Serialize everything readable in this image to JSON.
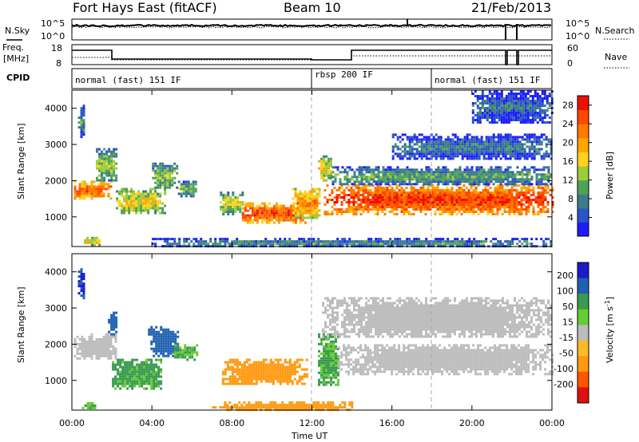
{
  "header": {
    "station": "Fort Hays East (fitACF)",
    "beam": "Beam 10",
    "date": "21/Feb/2013"
  },
  "noise_panel": {
    "left_label": "N.Sky",
    "right_label": "N.Search",
    "left_ticks": [
      "10^5",
      "10^0"
    ],
    "right_ticks": [
      "10^5",
      "10^0"
    ]
  },
  "freq_panel": {
    "left_label_1": "Freq.",
    "left_label_2": "[MHz]",
    "right_label": "Nave",
    "left_ticks": [
      "18",
      "8"
    ],
    "right_ticks": [
      "60",
      "0"
    ]
  },
  "cpid": {
    "label": "CPID",
    "modes": [
      {
        "name": "normal (fast) 151 IF",
        "start_hr": 0
      },
      {
        "name": "rbsp 200 IF",
        "start_hr": 12
      },
      {
        "name": "normal (fast) 151 IF",
        "start_hr": 18
      }
    ]
  },
  "x_axis": {
    "label": "Time UT",
    "ticks": [
      "00:00",
      "04:00",
      "08:00",
      "12:00",
      "16:00",
      "20:00",
      "00:00"
    ]
  },
  "chart_data": [
    {
      "type": "heatmap",
      "title": "",
      "xlabel": "Time UT",
      "ylabel": "Slant Range [km]",
      "xlim": [
        0,
        24
      ],
      "ylim": [
        180,
        4500
      ],
      "y_ticks": [
        "1000",
        "2000",
        "3000",
        "4000"
      ],
      "colorbar": {
        "label": "Power [dB]",
        "ticks": [
          "4",
          "8",
          "12",
          "16",
          "20",
          "24",
          "28"
        ],
        "range": [
          0,
          30
        ],
        "colors": [
          "#1c1cff",
          "#2b54c8",
          "#3d7b8a",
          "#4fa357",
          "#9ccc3c",
          "#ffd21f",
          "#ffa500",
          "#ff7a00",
          "#ff4800",
          "#ee1000"
        ]
      },
      "regions": [
        {
          "t0": 0.1,
          "t1": 1.9,
          "r0": 1500,
          "r1": 2000,
          "level": 0.7
        },
        {
          "t0": 0.3,
          "t1": 0.6,
          "r0": 3200,
          "r1": 4100,
          "level": 0.2
        },
        {
          "t0": 1.2,
          "t1": 2.2,
          "r0": 2000,
          "r1": 2900,
          "level": 0.35
        },
        {
          "t0": 2.2,
          "t1": 4.6,
          "r0": 1100,
          "r1": 1800,
          "level": 0.45
        },
        {
          "t0": 4.0,
          "t1": 5.2,
          "r0": 1800,
          "r1": 2500,
          "level": 0.35
        },
        {
          "t0": 5.3,
          "t1": 6.2,
          "r0": 1600,
          "r1": 2000,
          "level": 0.3
        },
        {
          "t0": 0.6,
          "t1": 1.4,
          "r0": 250,
          "r1": 450,
          "level": 0.5
        },
        {
          "t0": 7.4,
          "t1": 8.5,
          "r0": 1100,
          "r1": 1700,
          "level": 0.4
        },
        {
          "t0": 8.5,
          "t1": 11.7,
          "r0": 850,
          "r1": 1400,
          "level": 0.75
        },
        {
          "t0": 11.0,
          "t1": 12.4,
          "r0": 1000,
          "r1": 1800,
          "level": 0.6
        },
        {
          "t0": 12.3,
          "t1": 13.0,
          "r0": 2000,
          "r1": 2700,
          "level": 0.45
        },
        {
          "t0": 12.6,
          "t1": 24,
          "r0": 1100,
          "r1": 1900,
          "level": 0.78
        },
        {
          "t0": 13.0,
          "t1": 24,
          "r0": 1900,
          "r1": 2400,
          "level": 0.25
        },
        {
          "t0": 16.0,
          "t1": 24,
          "r0": 2600,
          "r1": 3300,
          "level": 0.15
        },
        {
          "t0": 20.0,
          "t1": 24,
          "r0": 3600,
          "r1": 4500,
          "level": 0.12
        },
        {
          "t0": 4.0,
          "t1": 24,
          "r0": 180,
          "r1": 420,
          "level": 0.2
        }
      ]
    },
    {
      "type": "heatmap",
      "title": "",
      "xlabel": "Time UT",
      "ylabel": "Slant Range [km]",
      "xlim": [
        0,
        24
      ],
      "ylim": [
        180,
        4500
      ],
      "y_ticks": [
        "1000",
        "2000",
        "3000",
        "4000"
      ],
      "colorbar": {
        "label": "Velocity [m s",
        "label_sup": "-1",
        "label_end": "]",
        "ticks": [
          "200",
          "100",
          "50",
          "15",
          "-15",
          "-50",
          "-100",
          "-200"
        ],
        "colors": [
          "#1a1acc",
          "#2060b0",
          "#3a9a50",
          "#66cc33",
          "#bcbcbc",
          "#ffbb22",
          "#ff9911",
          "#ff5500",
          "#dd1111"
        ]
      },
      "regions": [
        {
          "t0": 0.1,
          "t1": 2.2,
          "r0": 1600,
          "r1": 2300,
          "v": 0
        },
        {
          "t0": 0.3,
          "t1": 0.6,
          "r0": 3300,
          "r1": 4100,
          "v": 150
        },
        {
          "t0": 1.8,
          "t1": 2.2,
          "r0": 2300,
          "r1": 2900,
          "v": 120
        },
        {
          "t0": 2.0,
          "t1": 4.5,
          "r0": 800,
          "r1": 1600,
          "v": 40
        },
        {
          "t0": 3.8,
          "t1": 5.3,
          "r0": 1700,
          "r1": 2500,
          "v": 110
        },
        {
          "t0": 5.0,
          "t1": 6.2,
          "r0": 1600,
          "r1": 2000,
          "v": 30
        },
        {
          "t0": 0.5,
          "t1": 1.2,
          "r0": 250,
          "r1": 400,
          "v": 30
        },
        {
          "t0": 7.5,
          "t1": 11.7,
          "r0": 900,
          "r1": 1600,
          "v": -60
        },
        {
          "t0": 12.3,
          "t1": 13.3,
          "r0": 900,
          "r1": 2300,
          "v": 35
        },
        {
          "t0": 13.3,
          "t1": 24,
          "r0": 1200,
          "r1": 2000,
          "v": 0
        },
        {
          "t0": 12.5,
          "t1": 24,
          "r0": 2200,
          "r1": 3300,
          "v": 0
        },
        {
          "t0": 7.0,
          "t1": 14.0,
          "r0": 180,
          "r1": 420,
          "v": -60
        }
      ]
    }
  ]
}
